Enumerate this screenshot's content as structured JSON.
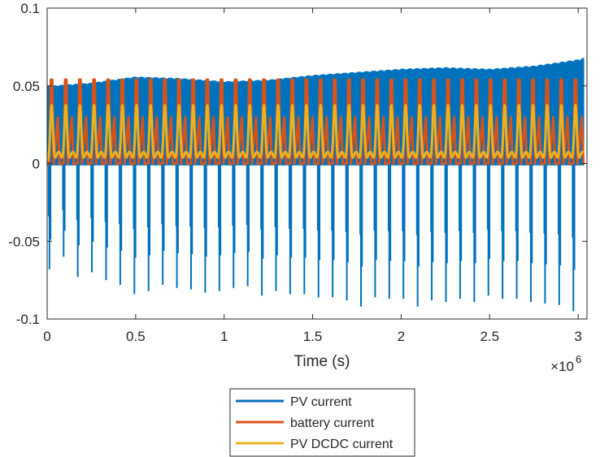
{
  "chart_data": {
    "type": "line",
    "title": "",
    "xlabel": "Time (s)",
    "ylabel": "",
    "xlim": [
      0,
      3.05
    ],
    "ylim": [
      -0.1,
      0.1
    ],
    "x_exponent_label": "×10",
    "x_exponent_power": "6",
    "xticks": [
      0,
      0.5,
      1,
      1.5,
      2,
      2.5,
      3
    ],
    "xtick_labels": [
      "0",
      "0.5",
      "1",
      "1.5",
      "2",
      "2.5",
      "3"
    ],
    "yticks": [
      -0.1,
      -0.05,
      0,
      0.05,
      0.1
    ],
    "ytick_labels": [
      "-0.1",
      "-0.05",
      "0",
      "0.05",
      "0.1"
    ],
    "grid": false,
    "legend_position": "bottom-center, outside axes",
    "series": [
      {
        "name": "PV current",
        "color": "#0072BD",
        "style": "dense oscillation band",
        "x": [
          0.0,
          0.25,
          0.5,
          0.75,
          1.0,
          1.25,
          1.5,
          1.75,
          2.0,
          2.25,
          2.5,
          2.75,
          3.0,
          3.03
        ],
        "upper_envelope": [
          0.05,
          0.052,
          0.056,
          0.055,
          0.053,
          0.054,
          0.057,
          0.059,
          0.061,
          0.062,
          0.061,
          0.063,
          0.067,
          0.068
        ],
        "lower_baseline": [
          0.0,
          0.0,
          0.0,
          0.0,
          0.0,
          0.0,
          0.0,
          0.0,
          0.0,
          0.0,
          0.0,
          0.0,
          0.0,
          0.0
        ],
        "spike_x": [
          0.013,
          0.093,
          0.173,
          0.253,
          0.333,
          0.413,
          0.493,
          0.573,
          0.653,
          0.733,
          0.813,
          0.893,
          0.973,
          1.053,
          1.133,
          1.213,
          1.293,
          1.373,
          1.453,
          1.533,
          1.613,
          1.693,
          1.773,
          1.853,
          1.933,
          2.013,
          2.093,
          2.173,
          2.253,
          2.333,
          2.413,
          2.493,
          2.573,
          2.653,
          2.733,
          2.813,
          2.893,
          2.973
        ],
        "spike_min": [
          -0.068,
          -0.06,
          -0.073,
          -0.07,
          -0.075,
          -0.078,
          -0.084,
          -0.082,
          -0.078,
          -0.08,
          -0.081,
          -0.083,
          -0.082,
          -0.08,
          -0.079,
          -0.085,
          -0.082,
          -0.084,
          -0.084,
          -0.086,
          -0.086,
          -0.088,
          -0.092,
          -0.086,
          -0.087,
          -0.087,
          -0.092,
          -0.088,
          -0.089,
          -0.087,
          -0.089,
          -0.085,
          -0.087,
          -0.087,
          -0.089,
          -0.09,
          -0.091,
          -0.095
        ]
      },
      {
        "name": "battery current",
        "color": "#D95319",
        "style": "periodic peaks",
        "peak_x": [
          0.025,
          0.105,
          0.185,
          0.265,
          0.345,
          0.425,
          0.505,
          0.585,
          0.665,
          0.745,
          0.825,
          0.905,
          0.985,
          1.065,
          1.145,
          1.225,
          1.305,
          1.385,
          1.465,
          1.545,
          1.625,
          1.705,
          1.785,
          1.865,
          1.945,
          2.025,
          2.105,
          2.185,
          2.265,
          2.345,
          2.425,
          2.505,
          2.585,
          2.665,
          2.745,
          2.825,
          2.905,
          2.985
        ],
        "peak_value": 0.054,
        "baseline": 0.0
      },
      {
        "name": "PV DCDC current",
        "color": "#EDB120",
        "style": "periodic peaks",
        "peak_x": [
          0.025,
          0.105,
          0.185,
          0.265,
          0.345,
          0.425,
          0.505,
          0.585,
          0.665,
          0.745,
          0.825,
          0.905,
          0.985,
          1.065,
          1.145,
          1.225,
          1.305,
          1.385,
          1.465,
          1.545,
          1.625,
          1.705,
          1.785,
          1.865,
          1.945,
          2.025,
          2.105,
          2.185,
          2.265,
          2.345,
          2.425,
          2.505,
          2.585,
          2.665,
          2.745,
          2.825,
          2.905,
          2.985
        ],
        "peak_value": 0.036,
        "secondary_value": 0.006,
        "baseline": 0.0015
      }
    ]
  }
}
